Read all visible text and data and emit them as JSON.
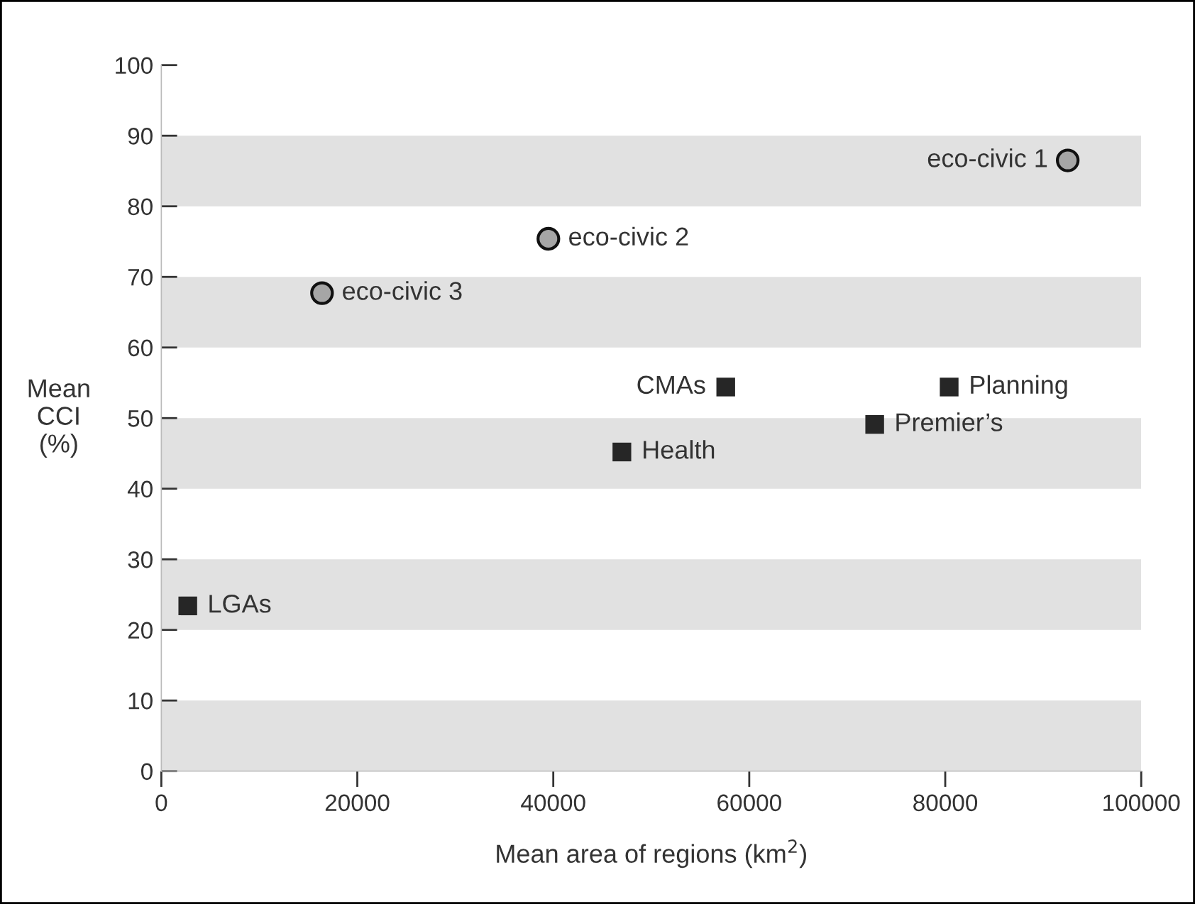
{
  "chart_data": {
    "type": "scatter",
    "xlabel": "Mean area of regions (km$^{2}$)",
    "ylabel": "Mean\nCCI\n(%)",
    "xlim": [
      0,
      100000
    ],
    "ylim": [
      0,
      100
    ],
    "xticks": [
      0,
      20000,
      40000,
      60000,
      80000,
      100000
    ],
    "yticks": [
      0,
      10,
      20,
      30,
      40,
      50,
      60,
      70,
      80,
      90,
      100
    ],
    "grid": false,
    "series": [
      {
        "color": "#a6a6a6",
        "marker": "circle",
        "x": [
          92500,
          39500,
          16400
        ],
        "values": [
          86.5,
          75.4,
          67.7
        ]
      },
      {
        "color": "#262626",
        "marker": "square",
        "x": [
          57600,
          80400,
          72800,
          47000,
          2700
        ],
        "values": [
          54.4,
          54.4,
          49.1,
          45.2,
          23.4
        ]
      }
    ],
    "bands": [
      {
        "axis": "y",
        "from": 0,
        "to": 10,
        "color": "#e1e1e1"
      },
      {
        "axis": "y",
        "from": 20,
        "to": 30,
        "color": "#e1e1e1"
      },
      {
        "axis": "y",
        "from": 40,
        "to": 50,
        "color": "#e1e1e1"
      },
      {
        "axis": "y",
        "from": 60,
        "to": 70,
        "color": "#e1e1e1"
      },
      {
        "axis": "y",
        "from": 80,
        "to": 90,
        "color": "#e1e1e1"
      }
    ],
    "annotations": [
      {
        "text": "eco-civic 1",
        "x": 92500,
        "y": 86.5
      },
      {
        "text": "eco-civic 2",
        "x": 39500,
        "y": 75.4
      },
      {
        "text": "eco-civic 3",
        "x": 16400,
        "y": 67.7
      },
      {
        "text": "CMAs",
        "x": 57600,
        "y": 54.4
      },
      {
        "text": "Planning",
        "x": 80400,
        "y": 54.4
      },
      {
        "text": "Premier’s",
        "x": 72800,
        "y": 49.1
      },
      {
        "text": "Health",
        "x": 47000,
        "y": 45.2
      },
      {
        "text": "LGAs",
        "x": 2700,
        "y": 23.4
      }
    ]
  }
}
